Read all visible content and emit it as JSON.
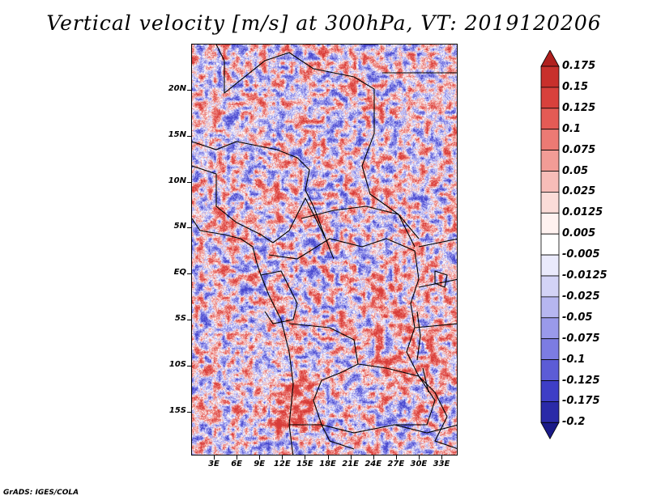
{
  "title": "Vertical velocity [m/s] at 300hPa, VT: 2019120206",
  "footer": "GrADS: IGES/COLA",
  "map": {
    "lat_labels": [
      "20N",
      "15N",
      "10N",
      "5N",
      "EQ",
      "5S",
      "10S",
      "15S"
    ],
    "lon_labels": [
      "3E",
      "6E",
      "9E",
      "12E",
      "15E",
      "18E",
      "21E",
      "24E",
      "27E",
      "30E",
      "33E"
    ]
  },
  "colorbar": {
    "labels": [
      "0.175",
      "0.15",
      "0.125",
      "0.1",
      "0.075",
      "0.05",
      "0.025",
      "0.0125",
      "0.005",
      "-0.005",
      "-0.0125",
      "-0.025",
      "-0.05",
      "-0.075",
      "-0.1",
      "-0.125",
      "-0.175",
      "-0.2"
    ],
    "colors": [
      "#b0201e",
      "#c8302c",
      "#d8413c",
      "#e45b55",
      "#ec7a74",
      "#f29c96",
      "#f7bdb8",
      "#fbdcd8",
      "#fff2f0",
      "#ffffff",
      "#eaeafc",
      "#d3d3f6",
      "#b6b6f0",
      "#9a9aea",
      "#7c7ce2",
      "#5c5cd6",
      "#3e3ec6",
      "#2a2aa8",
      "#1a1a88"
    ]
  },
  "colors": {
    "positive": "#d83a34",
    "negative": "#4a4ad0",
    "border": "#000000"
  }
}
